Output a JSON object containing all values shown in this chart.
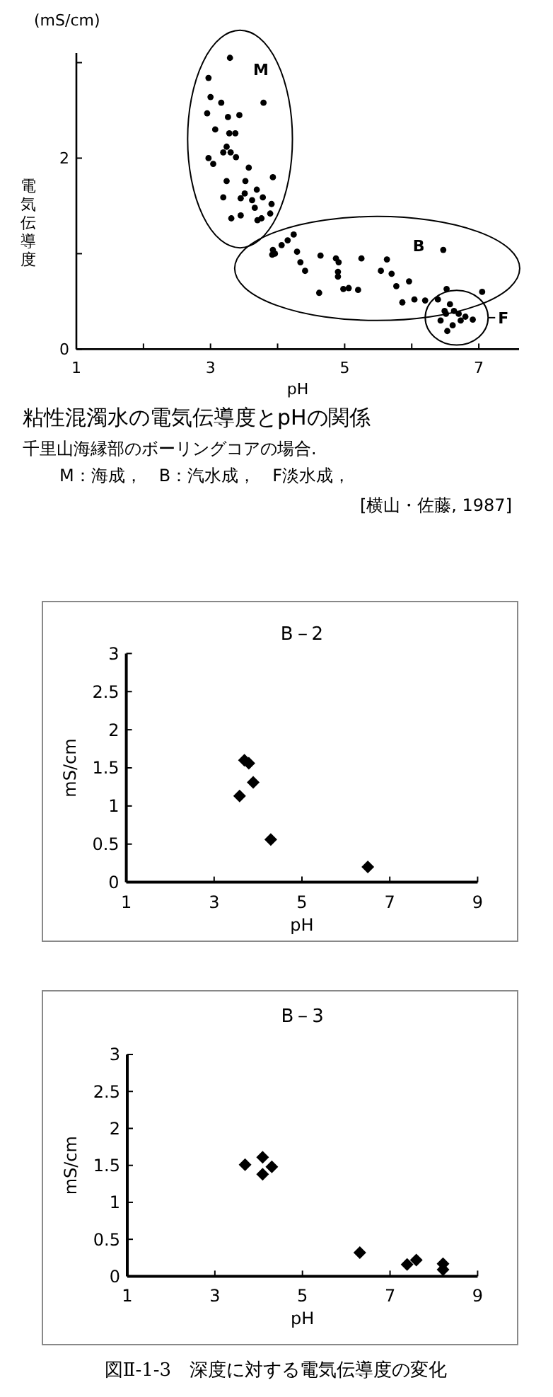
{
  "chart_data": [
    {
      "type": "scatter",
      "title": "粘性混濁水の電気伝導度とpHの関係",
      "subtitle": "千里山海縁部のボーリングコアの場合.",
      "xlabel": "pH",
      "ylabel": "電気伝導度",
      "annotations": [
        "(mS/cm)",
        "M：海成，　B：汽水成，　F淡水成，",
        "[横山・佐藤, 1987]"
      ],
      "xlim": [
        1,
        7.6
      ],
      "ylim": [
        0,
        3.1
      ],
      "xticks": [
        1,
        {
          "value": 2,
          "label": null
        },
        3,
        {
          "value": 4,
          "label": null
        },
        5,
        {
          "value": 6,
          "label": null
        },
        7
      ],
      "yticks": [
        0,
        {
          "value": 1,
          "label": null
        },
        2,
        {
          "value": 3,
          "label": null
        }
      ],
      "marker": "circle",
      "series": [
        {
          "name": "M",
          "color": "#000000",
          "x": [
            3.29,
            2.97,
            3.0,
            3.16,
            3.79,
            2.95,
            3.26,
            3.43,
            3.07,
            3.28,
            3.37,
            3.24,
            3.19,
            3.3,
            3.38,
            2.97,
            3.04,
            3.57,
            3.93,
            3.24,
            3.52,
            3.69,
            3.51,
            3.19,
            3.45,
            3.62,
            3.78,
            3.91,
            3.66,
            3.45,
            3.31,
            3.89,
            3.76,
            3.7
          ],
          "values": [
            3.05,
            2.84,
            2.64,
            2.58,
            2.58,
            2.47,
            2.43,
            2.45,
            2.3,
            2.26,
            2.26,
            2.12,
            2.06,
            2.06,
            2.01,
            2.0,
            1.94,
            1.9,
            1.8,
            1.76,
            1.76,
            1.67,
            1.63,
            1.59,
            1.58,
            1.56,
            1.59,
            1.52,
            1.48,
            1.4,
            1.37,
            1.42,
            1.37,
            1.35
          ]
        },
        {
          "name": "B",
          "color": "#000000",
          "x": [
            4.24,
            4.15,
            4.06,
            3.93,
            3.92,
            3.96,
            4.29,
            4.34,
            4.41,
            4.64,
            4.87,
            4.91,
            4.9,
            4.9,
            5.25,
            5.63,
            5.54,
            5.7,
            4.98,
            5.06,
            5.2,
            4.62,
            5.77,
            5.96,
            5.86,
            6.04,
            6.2,
            6.39,
            6.47,
            6.52,
            7.05
          ],
          "values": [
            1.2,
            1.14,
            1.09,
            1.04,
            0.99,
            1.0,
            1.02,
            0.91,
            0.82,
            0.98,
            0.95,
            0.91,
            0.81,
            0.76,
            0.95,
            0.94,
            0.82,
            0.79,
            0.63,
            0.64,
            0.62,
            0.59,
            0.66,
            0.71,
            0.49,
            0.52,
            0.51,
            0.52,
            1.04,
            0.63,
            0.6
          ]
        },
        {
          "name": "F",
          "color": "#000000",
          "x": [
            6.57,
            6.49,
            6.63,
            6.7,
            6.8,
            6.91,
            6.51,
            6.43,
            6.61,
            6.53,
            6.73
          ],
          "values": [
            0.47,
            0.4,
            0.4,
            0.37,
            0.34,
            0.31,
            0.37,
            0.3,
            0.25,
            0.19,
            0.3
          ]
        }
      ]
    },
    {
      "type": "scatter",
      "title": "B－2",
      "xlabel": "pH",
      "ylabel": "mS/cm",
      "xlim": [
        1,
        9
      ],
      "ylim": [
        0,
        3
      ],
      "xticks": [
        1,
        3,
        5,
        7,
        9
      ],
      "yticks": [
        0,
        0.5,
        1,
        1.5,
        2,
        2.5,
        3
      ],
      "marker": "diamond",
      "series": [
        {
          "color": "#000000",
          "x": [
            3.58,
            3.69,
            3.79,
            3.89,
            4.29,
            6.5
          ],
          "values": [
            1.13,
            1.6,
            1.56,
            1.31,
            0.56,
            0.2
          ]
        }
      ]
    },
    {
      "type": "scatter",
      "title": "B－3",
      "xlabel": "pH",
      "ylabel": "mS/cm",
      "annotations": [
        "図Ⅱ-1-3　深度に対する電気伝導度の変化"
      ],
      "xlim": [
        1,
        9
      ],
      "ylim": [
        0,
        3
      ],
      "xticks": [
        1,
        3,
        5,
        7,
        9
      ],
      "yticks": [
        0,
        0.5,
        1,
        1.5,
        2,
        2.5,
        3
      ],
      "marker": "diamond",
      "series": [
        {
          "color": "#000000",
          "x": [
            3.69,
            4.09,
            4.09,
            4.3,
            6.31,
            7.39,
            7.6,
            8.21,
            8.21
          ],
          "values": [
            1.51,
            1.61,
            1.38,
            1.48,
            0.32,
            0.16,
            0.22,
            0.17,
            0.09
          ]
        }
      ]
    }
  ]
}
